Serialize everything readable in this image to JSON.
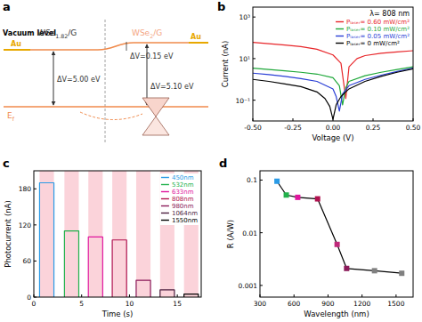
{
  "diagram": {
    "title": "a",
    "vacuum_level": "Vacuum level",
    "left_electrode": "Au",
    "right_electrode": "Au",
    "left_material": {
      "base": "WSe",
      "sub": "1.82",
      "tail": "/G"
    },
    "right_material": {
      "base": "WSe",
      "sub": "2",
      "tail": "/G"
    },
    "left_gap": "ΔV=5.00 eV",
    "step": "ΔV=0.15 eV",
    "right_gap": "ΔV=5.10 eV",
    "fermi_level": {
      "base": "E",
      "sub": "f"
    }
  },
  "chart_data": [
    {
      "type": "line",
      "title": "b",
      "x_label": "Voltage (V)",
      "y_label": "Current (nA)",
      "log": "y",
      "legend": "upper right",
      "annotations": [
        "λ= 808 nm"
      ],
      "xlim": [
        -0.5,
        0.5
      ],
      "xticks": [
        {
          "value": -0.5,
          "label": "-0.50"
        },
        {
          "value": -0.25,
          "label": "-0.25"
        },
        {
          "value": 0,
          "label": "0.00"
        },
        {
          "value": 0.25,
          "label": "0.25"
        },
        {
          "value": 0.5,
          "label": "0.50"
        }
      ],
      "ylim": [
        0.01,
        3000
      ],
      "yticks": [
        {
          "value": 0.1,
          "label": "10⁻¹"
        },
        {
          "value": 10,
          "label": "10¹"
        },
        {
          "value": 1000,
          "label": "10³"
        }
      ],
      "series": [
        {
          "name": "Pₗₐₛₑᵣ= 0.60 mW/cm²",
          "color": "#e8262a",
          "x": [
            -0.5,
            -0.4,
            -0.3,
            -0.2,
            -0.1,
            0,
            0.05,
            0.08,
            0.1,
            0.15,
            0.2,
            0.3,
            0.4,
            0.5
          ],
          "values": [
            60,
            52,
            45,
            38,
            28,
            15,
            6,
            0.12,
            4,
            10,
            14,
            18,
            21,
            24
          ]
        },
        {
          "name": "Pₗₐₛₑᵣ= 0.10 mW/cm²",
          "color": "#1fa83a",
          "x": [
            -0.5,
            -0.4,
            -0.3,
            -0.2,
            -0.1,
            0,
            0.04,
            0.06,
            0.08,
            0.1,
            0.2,
            0.3,
            0.4,
            0.5
          ],
          "values": [
            3.5,
            3.0,
            2.6,
            2.2,
            1.8,
            1.2,
            0.5,
            0.06,
            0.4,
            0.8,
            1.5,
            2.2,
            3.0,
            4.0
          ]
        },
        {
          "name": "Pₗₐₛₑᵣ= 0.05 mW/cm²",
          "color": "#2a3fd6",
          "x": [
            -0.5,
            -0.4,
            -0.3,
            -0.2,
            -0.1,
            0,
            0.02,
            0.04,
            0.06,
            0.1,
            0.2,
            0.3,
            0.4,
            0.5
          ],
          "values": [
            2.0,
            1.7,
            1.4,
            1.1,
            0.8,
            0.35,
            0.15,
            0.03,
            0.2,
            0.5,
            1.0,
            1.6,
            2.4,
            3.5
          ]
        },
        {
          "name": "Pₗₐₛₑᵣ= 0 mW/cm²",
          "color": "#000000",
          "x": [
            -0.5,
            -0.4,
            -0.3,
            -0.2,
            -0.1,
            -0.05,
            -0.02,
            0,
            0.02,
            0.05,
            0.1,
            0.2,
            0.3,
            0.4,
            0.5
          ],
          "values": [
            1.0,
            0.8,
            0.6,
            0.45,
            0.25,
            0.12,
            0.05,
            0.012,
            0.06,
            0.15,
            0.35,
            0.8,
            1.4,
            2.2,
            3.2
          ]
        }
      ]
    },
    {
      "type": "line",
      "title": "c",
      "x_label": "Time (s)",
      "y_label": "Photocurrent (nA)",
      "legend": "upper right",
      "xlim": [
        0,
        17.5
      ],
      "xticks": [
        0,
        5,
        10,
        15
      ],
      "ylim": [
        0,
        210
      ],
      "yticks": [
        0,
        60,
        120,
        180
      ],
      "on_intervals": [
        [
          0.6,
          2.1
        ],
        [
          3.2,
          4.7
        ],
        [
          5.7,
          7.2
        ],
        [
          8.2,
          9.7
        ],
        [
          10.7,
          12.2
        ],
        [
          13.2,
          14.7
        ],
        [
          15.7,
          17.2
        ]
      ],
      "series": [
        {
          "name": "450nm",
          "color": "#2b9be6",
          "x": [
            0.6,
            0.6,
            2.1,
            2.1
          ],
          "values": [
            0,
            190,
            190,
            0
          ]
        },
        {
          "name": "532nm",
          "color": "#22b14c",
          "x": [
            3.2,
            3.2,
            4.7,
            4.7
          ],
          "values": [
            0,
            110,
            110,
            0
          ]
        },
        {
          "name": "633nm",
          "color": "#e0169e",
          "x": [
            5.7,
            5.7,
            7.2,
            7.2
          ],
          "values": [
            0,
            100,
            100,
            0
          ]
        },
        {
          "name": "808nm",
          "color": "#b0124f",
          "x": [
            8.2,
            8.2,
            9.7,
            9.7
          ],
          "values": [
            0,
            95,
            95,
            0
          ]
        },
        {
          "name": "980nm",
          "color": "#8b1a5a",
          "x": [
            10.7,
            10.7,
            12.2,
            12.2
          ],
          "values": [
            0,
            28,
            28,
            0
          ]
        },
        {
          "name": "1064nm",
          "color": "#4b1e3e",
          "x": [
            13.2,
            13.2,
            14.7,
            14.7
          ],
          "values": [
            0,
            12,
            12,
            0
          ]
        },
        {
          "name": "1550nm",
          "color": "#000000",
          "x": [
            15.7,
            15.7,
            17.2,
            17.2
          ],
          "values": [
            0,
            5,
            5,
            0
          ]
        }
      ]
    },
    {
      "type": "line",
      "title": "d",
      "x_label": "Wavelength (nm)",
      "y_label": "R (A/W)",
      "log": "y",
      "marker": "square",
      "xlim": [
        300,
        1650
      ],
      "xticks": [
        300,
        600,
        900,
        1200,
        1500
      ],
      "ylim": [
        0.0006,
        0.15
      ],
      "yticks": [
        0.001,
        0.01,
        0.1
      ],
      "series": [
        {
          "color": "#000000",
          "x": [
            450,
            532,
            633,
            808,
            980,
            1064,
            1310,
            1550
          ],
          "values": [
            0.095,
            0.052,
            0.047,
            0.044,
            0.006,
            0.0021,
            0.0019,
            0.0017
          ],
          "colors": [
            "#2b9be6",
            "#22b14c",
            "#e0169e",
            "#b0124f",
            "#c0287a",
            "#8b1a5a",
            "#808080",
            "#808080"
          ]
        }
      ]
    }
  ]
}
